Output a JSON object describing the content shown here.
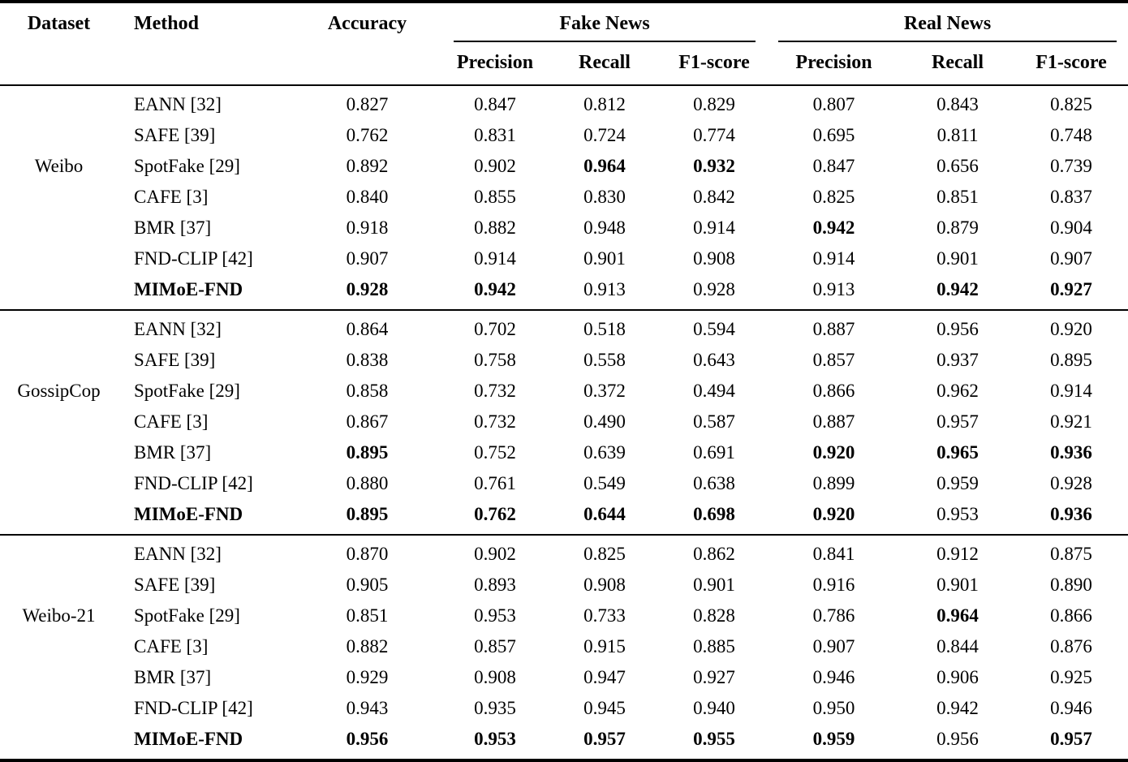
{
  "table": {
    "headers": {
      "dataset": "Dataset",
      "method": "Method",
      "accuracy": "Accuracy",
      "fake_news": "Fake News",
      "real_news": "Real News",
      "sub": [
        "Precision",
        "Recall",
        "F1-score"
      ]
    },
    "metric_column_names": [
      "accuracy",
      "fake-precision",
      "fake-recall",
      "fake-f1",
      "real-precision",
      "real-recall",
      "real-f1"
    ],
    "groups": [
      {
        "dataset": "Weibo",
        "rows": [
          {
            "method": "EANN [32]",
            "bold_method": false,
            "values": [
              "0.827",
              "0.847",
              "0.812",
              "0.829",
              "0.807",
              "0.843",
              "0.825"
            ],
            "bold": [
              false,
              false,
              false,
              false,
              false,
              false,
              false
            ]
          },
          {
            "method": "SAFE [39]",
            "bold_method": false,
            "values": [
              "0.762",
              "0.831",
              "0.724",
              "0.774",
              "0.695",
              "0.811",
              "0.748"
            ],
            "bold": [
              false,
              false,
              false,
              false,
              false,
              false,
              false
            ]
          },
          {
            "method": "SpotFake [29]",
            "bold_method": false,
            "values": [
              "0.892",
              "0.902",
              "0.964",
              "0.932",
              "0.847",
              "0.656",
              "0.739"
            ],
            "bold": [
              false,
              false,
              true,
              true,
              false,
              false,
              false
            ]
          },
          {
            "method": "CAFE [3]",
            "bold_method": false,
            "values": [
              "0.840",
              "0.855",
              "0.830",
              "0.842",
              "0.825",
              "0.851",
              "0.837"
            ],
            "bold": [
              false,
              false,
              false,
              false,
              false,
              false,
              false
            ]
          },
          {
            "method": "BMR [37]",
            "bold_method": false,
            "values": [
              "0.918",
              "0.882",
              "0.948",
              "0.914",
              "0.942",
              "0.879",
              "0.904"
            ],
            "bold": [
              false,
              false,
              false,
              false,
              true,
              false,
              false
            ]
          },
          {
            "method": "FND-CLIP [42]",
            "bold_method": false,
            "values": [
              "0.907",
              "0.914",
              "0.901",
              "0.908",
              "0.914",
              "0.901",
              "0.907"
            ],
            "bold": [
              false,
              false,
              false,
              false,
              false,
              false,
              false
            ]
          },
          {
            "method": "MIMoE-FND",
            "bold_method": true,
            "values": [
              "0.928",
              "0.942",
              "0.913",
              "0.928",
              "0.913",
              "0.942",
              "0.927"
            ],
            "bold": [
              true,
              true,
              false,
              false,
              false,
              true,
              true
            ]
          }
        ]
      },
      {
        "dataset": "GossipCop",
        "rows": [
          {
            "method": "EANN [32]",
            "bold_method": false,
            "values": [
              "0.864",
              "0.702",
              "0.518",
              "0.594",
              "0.887",
              "0.956",
              "0.920"
            ],
            "bold": [
              false,
              false,
              false,
              false,
              false,
              false,
              false
            ]
          },
          {
            "method": "SAFE [39]",
            "bold_method": false,
            "values": [
              "0.838",
              "0.758",
              "0.558",
              "0.643",
              "0.857",
              "0.937",
              "0.895"
            ],
            "bold": [
              false,
              false,
              false,
              false,
              false,
              false,
              false
            ]
          },
          {
            "method": "SpotFake [29]",
            "bold_method": false,
            "values": [
              "0.858",
              "0.732",
              "0.372",
              "0.494",
              "0.866",
              "0.962",
              "0.914"
            ],
            "bold": [
              false,
              false,
              false,
              false,
              false,
              false,
              false
            ]
          },
          {
            "method": "CAFE [3]",
            "bold_method": false,
            "values": [
              "0.867",
              "0.732",
              "0.490",
              "0.587",
              "0.887",
              "0.957",
              "0.921"
            ],
            "bold": [
              false,
              false,
              false,
              false,
              false,
              false,
              false
            ]
          },
          {
            "method": "BMR [37]",
            "bold_method": false,
            "values": [
              "0.895",
              "0.752",
              "0.639",
              "0.691",
              "0.920",
              "0.965",
              "0.936"
            ],
            "bold": [
              true,
              false,
              false,
              false,
              true,
              true,
              true
            ]
          },
          {
            "method": "FND-CLIP [42]",
            "bold_method": false,
            "values": [
              "0.880",
              "0.761",
              "0.549",
              "0.638",
              "0.899",
              "0.959",
              "0.928"
            ],
            "bold": [
              false,
              false,
              false,
              false,
              false,
              false,
              false
            ]
          },
          {
            "method": "MIMoE-FND",
            "bold_method": true,
            "values": [
              "0.895",
              "0.762",
              "0.644",
              "0.698",
              "0.920",
              "0.953",
              "0.936"
            ],
            "bold": [
              true,
              true,
              true,
              true,
              true,
              false,
              true
            ]
          }
        ]
      },
      {
        "dataset": "Weibo-21",
        "rows": [
          {
            "method": "EANN [32]",
            "bold_method": false,
            "values": [
              "0.870",
              "0.902",
              "0.825",
              "0.862",
              "0.841",
              "0.912",
              "0.875"
            ],
            "bold": [
              false,
              false,
              false,
              false,
              false,
              false,
              false
            ]
          },
          {
            "method": "SAFE [39]",
            "bold_method": false,
            "values": [
              "0.905",
              "0.893",
              "0.908",
              "0.901",
              "0.916",
              "0.901",
              "0.890"
            ],
            "bold": [
              false,
              false,
              false,
              false,
              false,
              false,
              false
            ]
          },
          {
            "method": "SpotFake [29]",
            "bold_method": false,
            "values": [
              "0.851",
              "0.953",
              "0.733",
              "0.828",
              "0.786",
              "0.964",
              "0.866"
            ],
            "bold": [
              false,
              false,
              false,
              false,
              false,
              true,
              false
            ]
          },
          {
            "method": "CAFE [3]",
            "bold_method": false,
            "values": [
              "0.882",
              "0.857",
              "0.915",
              "0.885",
              "0.907",
              "0.844",
              "0.876"
            ],
            "bold": [
              false,
              false,
              false,
              false,
              false,
              false,
              false
            ]
          },
          {
            "method": "BMR [37]",
            "bold_method": false,
            "values": [
              "0.929",
              "0.908",
              "0.947",
              "0.927",
              "0.946",
              "0.906",
              "0.925"
            ],
            "bold": [
              false,
              false,
              false,
              false,
              false,
              false,
              false
            ]
          },
          {
            "method": "FND-CLIP [42]",
            "bold_method": false,
            "values": [
              "0.943",
              "0.935",
              "0.945",
              "0.940",
              "0.950",
              "0.942",
              "0.946"
            ],
            "bold": [
              false,
              false,
              false,
              false,
              false,
              false,
              false
            ]
          },
          {
            "method": "MIMoE-FND",
            "bold_method": true,
            "values": [
              "0.956",
              "0.953",
              "0.957",
              "0.955",
              "0.959",
              "0.956",
              "0.957"
            ],
            "bold": [
              true,
              true,
              true,
              true,
              true,
              false,
              true
            ]
          }
        ]
      }
    ]
  }
}
